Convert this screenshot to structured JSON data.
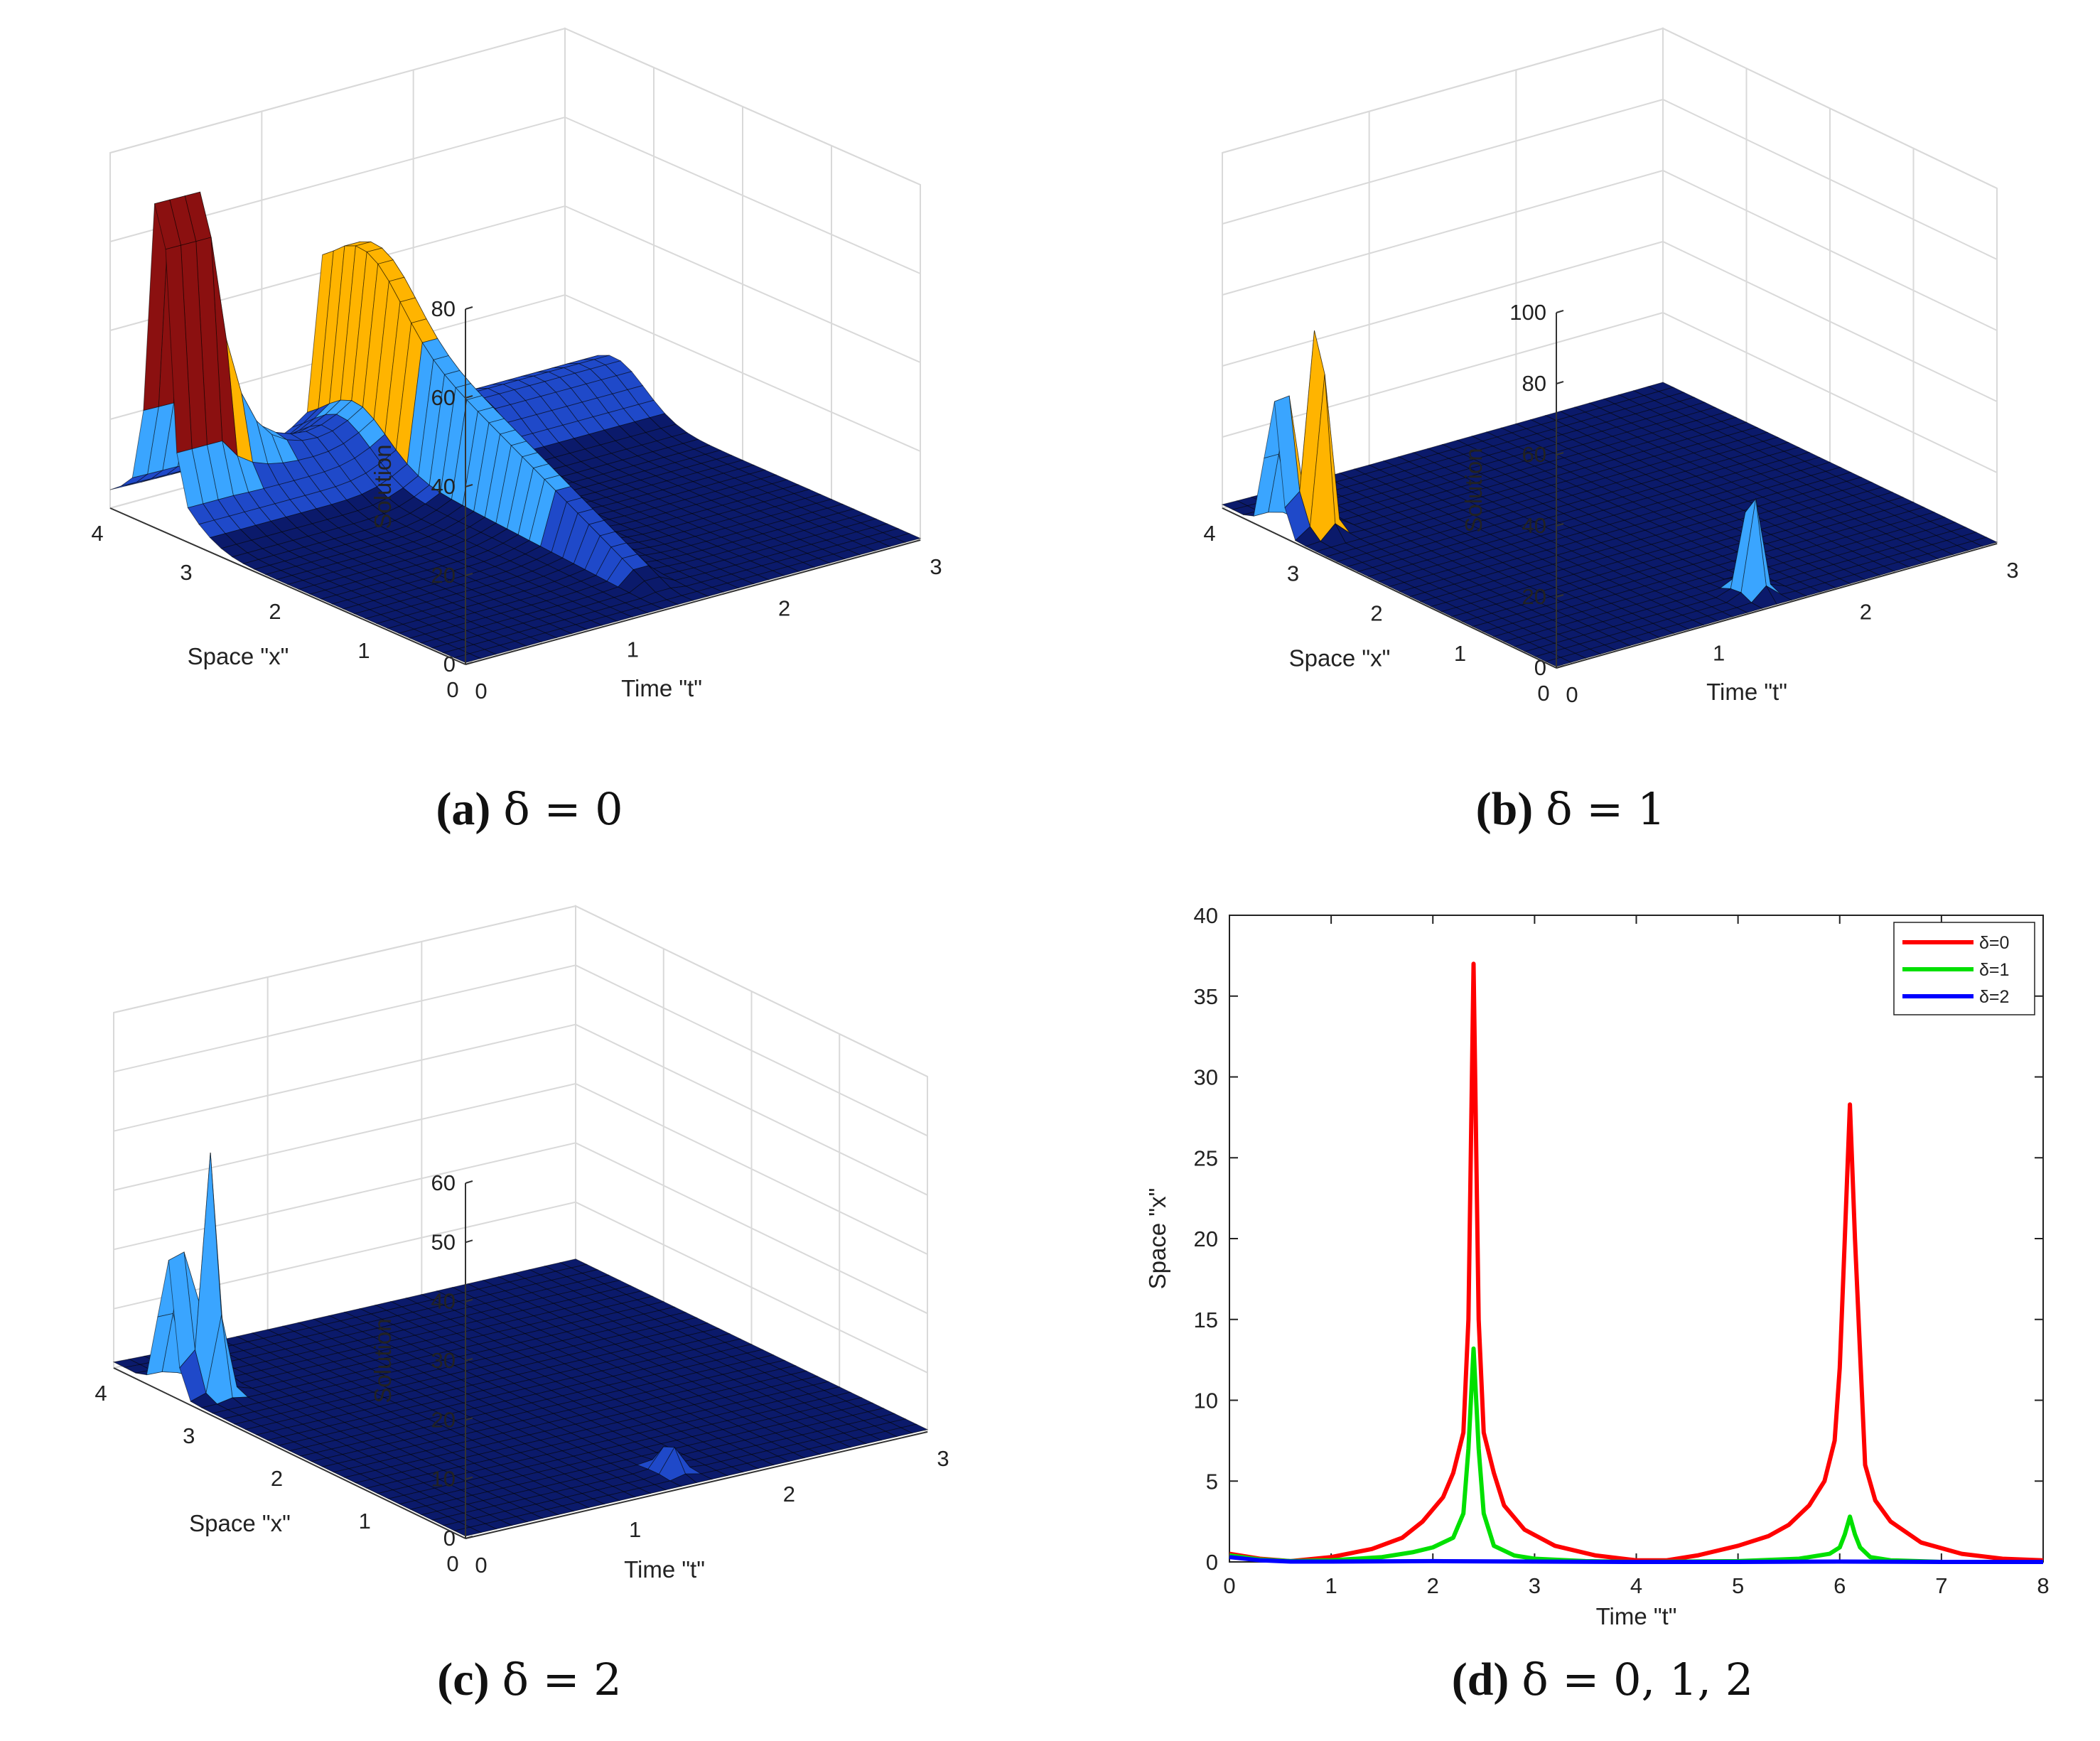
{
  "chart_data": [
    {
      "id": "a",
      "type": "surface",
      "caption_label": "(a)",
      "caption_math": "δ = 0",
      "delta": 0,
      "zlabel": "Solution",
      "xlabel": "Space \"x\"",
      "ylabel": "Time \"t\"",
      "zticks": [
        "0",
        "20",
        "40",
        "60",
        "80"
      ],
      "xticks": [
        "0",
        "1",
        "2",
        "3",
        "4"
      ],
      "tticks": [
        "0",
        "1",
        "2",
        "3"
      ],
      "zlim": [
        0,
        80
      ],
      "xlim": [
        0,
        4
      ],
      "tlim": [
        0,
        3
      ],
      "peaks": [
        {
          "x": 3.45,
          "t": 0.0,
          "z": 70,
          "ridge_along_t": 0.3
        },
        {
          "x": 0.2,
          "t": 1.45,
          "z": 62,
          "ridge_along_x": 3.5
        }
      ],
      "colormap": [
        "#0b1a6b",
        "#1f49c9",
        "#3aa5ff",
        "#ffb400",
        "#8b1010"
      ]
    },
    {
      "id": "b",
      "type": "surface",
      "caption_label": "(b)",
      "caption_math": "δ = 1",
      "delta": 1,
      "zlabel": "Solution",
      "xlabel": "Space \"x\"",
      "ylabel": "Time \"t\"",
      "zticks": [
        "0",
        "20",
        "40",
        "60",
        "80",
        "100"
      ],
      "xticks": [
        "0",
        "1",
        "2",
        "3",
        "4"
      ],
      "tticks": [
        "0",
        "1",
        "2",
        "3"
      ],
      "zlim": [
        0,
        100
      ],
      "xlim": [
        0,
        4
      ],
      "tlim": [
        0,
        3
      ],
      "peaks": [
        {
          "x": 3.4,
          "t": 0.05,
          "z": 76
        },
        {
          "x": 3.2,
          "t": 0.2,
          "z": 66
        },
        {
          "x": 0.3,
          "t": 1.5,
          "z": 32
        }
      ],
      "colormap": [
        "#0b1a6b",
        "#1f49c9",
        "#3aa5ff",
        "#7dffa8",
        "#ffb400",
        "#8b1010"
      ]
    },
    {
      "id": "c",
      "type": "surface",
      "caption_label": "(c)",
      "caption_math": "δ = 2",
      "delta": 2,
      "zlabel": "Solution",
      "xlabel": "Space \"x\"",
      "ylabel": "Time \"t\"",
      "zticks": [
        "0",
        "10",
        "20",
        "30",
        "40",
        "50",
        "60"
      ],
      "xticks": [
        "0",
        "1",
        "2",
        "3",
        "4"
      ],
      "tticks": [
        "0",
        "1",
        "2",
        "3"
      ],
      "zlim": [
        0,
        60
      ],
      "xlim": [
        0,
        4
      ],
      "tlim": [
        0,
        3
      ],
      "peaks": [
        {
          "x": 3.4,
          "t": 0.05,
          "z": 46
        },
        {
          "x": 3.25,
          "t": 0.2,
          "z": 40
        },
        {
          "x": 0.3,
          "t": 1.5,
          "z": 5
        }
      ],
      "colormap": [
        "#0b1a6b",
        "#1f49c9",
        "#3aa5ff",
        "#8b1010"
      ]
    },
    {
      "id": "d",
      "type": "line",
      "caption_label": "(d)",
      "caption_math": "δ = 0, 1, 2",
      "xlabel": "Time \"t\"",
      "ylabel": "Space \"x\"",
      "xlim": [
        0,
        8
      ],
      "ylim": [
        0,
        40
      ],
      "xticks": [
        "0",
        "1",
        "2",
        "3",
        "4",
        "5",
        "6",
        "7",
        "8"
      ],
      "yticks": [
        "0",
        "5",
        "10",
        "15",
        "20",
        "25",
        "30",
        "35",
        "40"
      ],
      "legend_position": "top-right",
      "series": [
        {
          "name": "δ=0",
          "color": "#ff0000",
          "x": [
            0,
            0.3,
            0.6,
            1.0,
            1.4,
            1.7,
            1.9,
            2.1,
            2.2,
            2.3,
            2.35,
            2.4,
            2.45,
            2.5,
            2.6,
            2.7,
            2.9,
            3.2,
            3.6,
            4.0,
            4.3,
            4.6,
            5.0,
            5.3,
            5.5,
            5.7,
            5.85,
            5.95,
            6.0,
            6.05,
            6.1,
            6.15,
            6.25,
            6.35,
            6.5,
            6.8,
            7.2,
            7.6,
            8.0
          ],
          "y": [
            0.5,
            0.2,
            0.05,
            0.3,
            0.8,
            1.5,
            2.5,
            4.0,
            5.5,
            8.0,
            15,
            37,
            15,
            8.0,
            5.5,
            3.5,
            2.0,
            1.0,
            0.4,
            0.1,
            0.1,
            0.4,
            1.0,
            1.6,
            2.3,
            3.5,
            5.0,
            7.5,
            12,
            20,
            28.3,
            20,
            6.0,
            3.8,
            2.5,
            1.2,
            0.5,
            0.2,
            0.1
          ]
        },
        {
          "name": "δ=1",
          "color": "#00e000",
          "x": [
            0,
            0.3,
            0.6,
            1.0,
            1.5,
            1.8,
            2.0,
            2.2,
            2.3,
            2.35,
            2.4,
            2.45,
            2.5,
            2.6,
            2.8,
            3.0,
            3.5,
            4.0,
            5.0,
            5.6,
            5.9,
            6.0,
            6.05,
            6.1,
            6.15,
            6.2,
            6.3,
            6.5,
            7.0,
            8.0
          ],
          "y": [
            0.4,
            0.15,
            0.05,
            0.1,
            0.3,
            0.6,
            0.9,
            1.5,
            3.0,
            7.0,
            13.2,
            7.0,
            3.0,
            1.0,
            0.4,
            0.2,
            0.05,
            0.0,
            0.05,
            0.2,
            0.5,
            0.9,
            1.7,
            2.8,
            1.7,
            0.9,
            0.3,
            0.1,
            0.0,
            0.0
          ]
        },
        {
          "name": "δ=2",
          "color": "#0000ff",
          "x": [
            0,
            0.3,
            0.6,
            1.0,
            2.0,
            3.0,
            4.0,
            5.0,
            6.0,
            7.0,
            8.0
          ],
          "y": [
            0.3,
            0.1,
            0.02,
            0.02,
            0.05,
            0.02,
            0.0,
            0.0,
            0.02,
            0.0,
            0.0
          ]
        }
      ]
    }
  ]
}
